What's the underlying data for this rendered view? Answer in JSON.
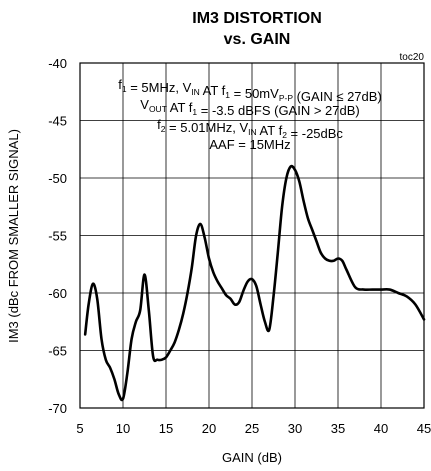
{
  "chart_data": {
    "type": "line",
    "title": [
      "IM3 DISTORTION",
      "vs. GAIN"
    ],
    "corner_label": "toc20",
    "xlabel": "GAIN (dB)",
    "ylabel": "IM3 (dBc FROM SMALLER SIGNAL)",
    "xlim": [
      5,
      45
    ],
    "ylim": [
      -70,
      -40
    ],
    "xticks": [
      5,
      10,
      15,
      20,
      25,
      30,
      35,
      40,
      45
    ],
    "yticks": [
      -40,
      -45,
      -50,
      -55,
      -60,
      -65,
      -70
    ],
    "grid": true,
    "annotation": [
      {
        "parts": [
          {
            "t": "f"
          },
          {
            "t": "1",
            "sub": true
          },
          {
            "t": " = 5MHz, V"
          },
          {
            "t": "IN",
            "sub": true
          },
          {
            "t": " AT f"
          },
          {
            "t": "1",
            "sub": true
          },
          {
            "t": " = 50mV"
          },
          {
            "t": "P-P",
            "sub": true
          },
          {
            "t": " (GAIN ≤ 27dB)"
          }
        ]
      },
      {
        "parts": [
          {
            "t": "V"
          },
          {
            "t": "OUT",
            "sub": true
          },
          {
            "t": " AT f"
          },
          {
            "t": "1",
            "sub": true
          },
          {
            "t": " = -3.5 dBFS (GAIN > 27dB)"
          }
        ]
      },
      {
        "parts": [
          {
            "t": "f"
          },
          {
            "t": "2",
            "sub": true
          },
          {
            "t": " = 5.01MHz, V"
          },
          {
            "t": "IN",
            "sub": true
          },
          {
            "t": " AT f"
          },
          {
            "t": "2",
            "sub": true
          },
          {
            "t": " = -25dBc"
          }
        ]
      },
      {
        "parts": [
          {
            "t": "AAF = 15MHz"
          }
        ]
      }
    ],
    "series": [
      {
        "x": [
          5.6,
          6.0,
          6.5,
          7.0,
          7.5,
          8.0,
          8.5,
          9.0,
          9.5,
          10.0,
          10.5,
          11.0,
          11.5,
          12.0,
          12.5,
          13.0,
          13.5,
          14.0,
          14.5,
          15.0,
          15.5,
          16.0,
          16.5,
          17.0,
          17.5,
          18.0,
          18.5,
          19.0,
          19.5,
          20.0,
          20.5,
          21.0,
          21.5,
          22.0,
          22.5,
          23.0,
          23.5,
          24.0,
          24.5,
          25.0,
          25.5,
          26.0,
          26.5,
          27.0,
          27.5,
          28.0,
          28.5,
          29.0,
          29.5,
          30.0,
          30.5,
          31.0,
          31.5,
          32.0,
          32.5,
          33.0,
          33.5,
          34.0,
          34.5,
          35.0,
          35.5,
          36.0,
          37.0,
          38.0,
          39.0,
          40.0,
          41.0,
          42.0,
          43.0,
          44.0,
          45.0
        ],
        "y": [
          -63.6,
          -61.0,
          -59.2,
          -60.5,
          -64.0,
          -65.8,
          -66.5,
          -67.5,
          -68.8,
          -69.2,
          -67.0,
          -64.0,
          -62.5,
          -61.5,
          -58.4,
          -61.5,
          -65.5,
          -65.8,
          -65.8,
          -65.6,
          -65.0,
          -64.3,
          -63.2,
          -61.8,
          -60.0,
          -57.8,
          -55.0,
          -54.0,
          -55.2,
          -57.0,
          -58.2,
          -59.0,
          -59.6,
          -60.2,
          -60.5,
          -61.0,
          -60.8,
          -59.8,
          -59.0,
          -58.8,
          -59.4,
          -61.0,
          -62.5,
          -63.2,
          -60.3,
          -56.5,
          -52.5,
          -50.0,
          -49.0,
          -49.3,
          -50.3,
          -52.0,
          -53.5,
          -54.5,
          -55.5,
          -56.5,
          -57.0,
          -57.2,
          -57.2,
          -57.0,
          -57.2,
          -58.0,
          -59.5,
          -59.7,
          -59.7,
          -59.7,
          -59.7,
          -60.0,
          -60.3,
          -61.0,
          -62.3
        ]
      }
    ]
  }
}
